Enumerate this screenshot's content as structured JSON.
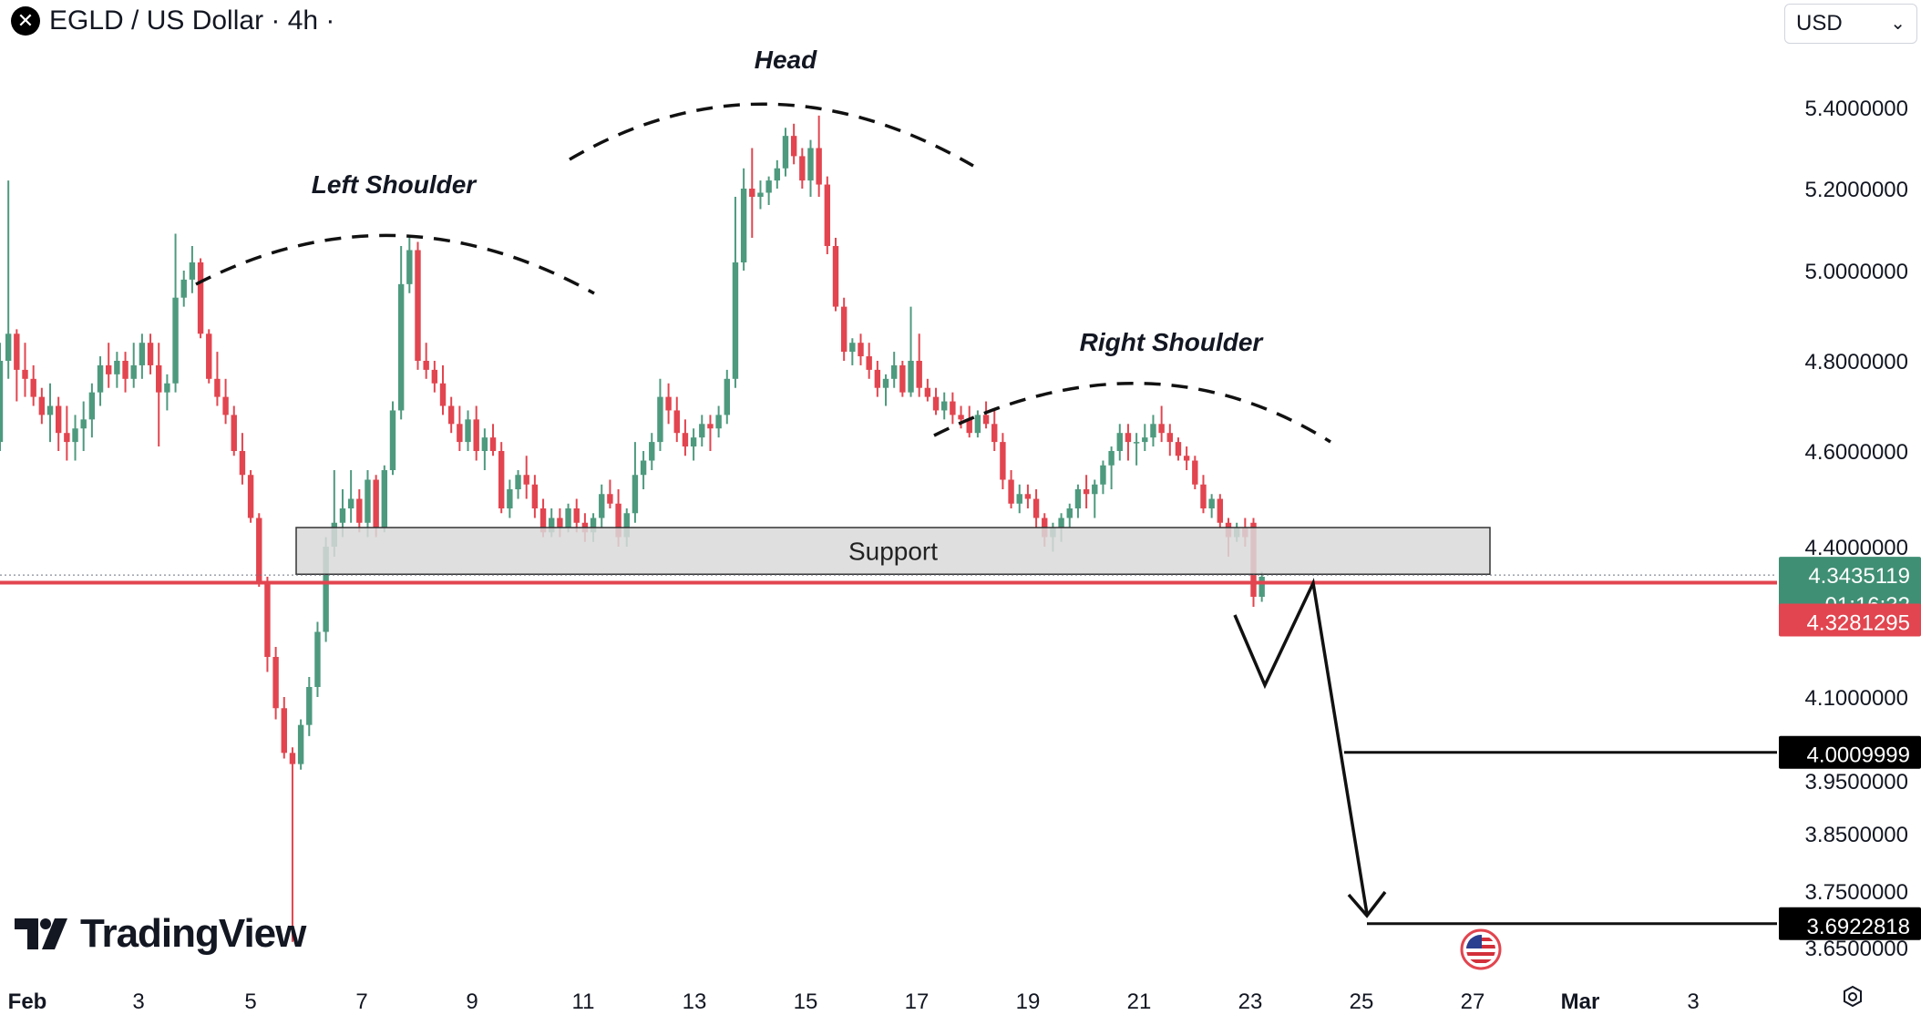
{
  "header": {
    "symbol": "EGLD / US Dollar · 4h ·",
    "currency": "USD"
  },
  "branding": {
    "logo_text": "TradingView"
  },
  "colors": {
    "up": "#26a69a",
    "up_body": "#4e9a7f",
    "down": "#e2454f",
    "support_fill": "#d9d9d9",
    "price_line": "#e2454f",
    "label_green": "#3f8f74"
  },
  "chart_data": {
    "type": "candlestick",
    "price_scale": [
      5.4,
      5.2,
      5.0,
      4.8,
      4.6,
      4.4,
      4.1,
      3.95,
      3.85,
      3.75,
      3.65
    ],
    "price_scale_labels": [
      "5.4000000",
      "5.2000000",
      "5.0000000",
      "4.8000000",
      "4.6000000",
      "4.4000000",
      "4.1000000",
      "3.9500000",
      "3.8500000",
      "3.7500000",
      "3.6500000"
    ],
    "time_labels": [
      "Feb",
      "3",
      "5",
      "7",
      "9",
      "11",
      "13",
      "15",
      "17",
      "19",
      "21",
      "23",
      "25",
      "27",
      "Mar",
      "3"
    ],
    "annotations": {
      "left_shoulder": "Left Shoulder",
      "head": "Head",
      "right_shoulder": "Right Shoulder",
      "support": "Support"
    },
    "support_zone": {
      "low": 4.345,
      "high": 4.44
    },
    "labels": {
      "last_price": "4.3435119",
      "countdown": "01:16:32",
      "red_level": "4.3281295",
      "target_1": "4.0009999",
      "target_2": "3.6922818"
    },
    "levels": {
      "last": 4.3435,
      "red": 4.3281,
      "target_1": 4.001,
      "target_2": 3.6923
    },
    "candles": [
      [
        4.62,
        4.84,
        4.6,
        4.8
      ],
      [
        4.8,
        5.22,
        4.76,
        4.86
      ],
      [
        4.86,
        4.87,
        4.71,
        4.78
      ],
      [
        4.78,
        4.84,
        4.72,
        4.76
      ],
      [
        4.76,
        4.79,
        4.7,
        4.72
      ],
      [
        4.72,
        4.74,
        4.66,
        4.68
      ],
      [
        4.68,
        4.75,
        4.62,
        4.7
      ],
      [
        4.7,
        4.72,
        4.6,
        4.64
      ],
      [
        4.64,
        4.7,
        4.58,
        4.62
      ],
      [
        4.62,
        4.68,
        4.58,
        4.65
      ],
      [
        4.65,
        4.71,
        4.6,
        4.67
      ],
      [
        4.67,
        4.75,
        4.63,
        4.73
      ],
      [
        4.73,
        4.81,
        4.7,
        4.79
      ],
      [
        4.79,
        4.84,
        4.74,
        4.77
      ],
      [
        4.77,
        4.82,
        4.74,
        4.8
      ],
      [
        4.8,
        4.82,
        4.73,
        4.76
      ],
      [
        4.76,
        4.84,
        4.74,
        4.79
      ],
      [
        4.79,
        4.86,
        4.76,
        4.84
      ],
      [
        4.84,
        4.86,
        4.77,
        4.79
      ],
      [
        4.79,
        4.84,
        4.61,
        4.73
      ],
      [
        4.73,
        4.77,
        4.69,
        4.75
      ],
      [
        4.75,
        5.09,
        4.73,
        4.94
      ],
      [
        4.94,
        5.0,
        4.92,
        4.98
      ],
      [
        4.98,
        5.06,
        4.95,
        5.02
      ],
      [
        5.02,
        5.03,
        4.85,
        4.86
      ],
      [
        4.86,
        4.87,
        4.75,
        4.76
      ],
      [
        4.76,
        4.82,
        4.7,
        4.72
      ],
      [
        4.72,
        4.76,
        4.66,
        4.68
      ],
      [
        4.68,
        4.7,
        4.59,
        4.6
      ],
      [
        4.6,
        4.64,
        4.53,
        4.55
      ],
      [
        4.55,
        4.56,
        4.45,
        4.46
      ],
      [
        4.46,
        4.47,
        4.32,
        4.33
      ],
      [
        4.33,
        4.34,
        4.15,
        4.18
      ],
      [
        4.18,
        4.2,
        4.06,
        4.08
      ],
      [
        4.08,
        4.1,
        3.99,
        4.0
      ],
      [
        4.0,
        4.01,
        3.66,
        3.98
      ],
      [
        3.98,
        4.06,
        3.97,
        4.05
      ],
      [
        4.05,
        4.14,
        4.03,
        4.12
      ],
      [
        4.12,
        4.25,
        4.1,
        4.23
      ],
      [
        4.23,
        4.42,
        4.21,
        4.4
      ],
      [
        4.4,
        4.56,
        4.38,
        4.45
      ],
      [
        4.45,
        4.52,
        4.42,
        4.48
      ],
      [
        4.48,
        4.56,
        4.45,
        4.5
      ],
      [
        4.5,
        4.52,
        4.43,
        4.45
      ],
      [
        4.45,
        4.56,
        4.42,
        4.54
      ],
      [
        4.54,
        4.55,
        4.42,
        4.44
      ],
      [
        4.44,
        4.57,
        4.43,
        4.56
      ],
      [
        4.56,
        4.71,
        4.55,
        4.69
      ],
      [
        4.69,
        5.06,
        4.67,
        4.97
      ],
      [
        4.97,
        5.08,
        4.95,
        5.05
      ],
      [
        5.05,
        5.07,
        4.78,
        4.8
      ],
      [
        4.8,
        4.84,
        4.76,
        4.78
      ],
      [
        4.78,
        4.8,
        4.73,
        4.75
      ],
      [
        4.75,
        4.79,
        4.68,
        4.7
      ],
      [
        4.7,
        4.72,
        4.64,
        4.66
      ],
      [
        4.66,
        4.7,
        4.6,
        4.62
      ],
      [
        4.62,
        4.69,
        4.6,
        4.67
      ],
      [
        4.67,
        4.7,
        4.58,
        4.6
      ],
      [
        4.6,
        4.65,
        4.56,
        4.63
      ],
      [
        4.63,
        4.66,
        4.59,
        4.6
      ],
      [
        4.6,
        4.62,
        4.47,
        4.48
      ],
      [
        4.48,
        4.54,
        4.46,
        4.52
      ],
      [
        4.52,
        4.56,
        4.5,
        4.55
      ],
      [
        4.55,
        4.59,
        4.5,
        4.53
      ],
      [
        4.53,
        4.55,
        4.46,
        4.48
      ],
      [
        4.48,
        4.5,
        4.42,
        4.43
      ],
      [
        4.43,
        4.48,
        4.42,
        4.46
      ],
      [
        4.46,
        4.48,
        4.42,
        4.44
      ],
      [
        4.44,
        4.49,
        4.43,
        4.48
      ],
      [
        4.48,
        4.5,
        4.43,
        4.45
      ],
      [
        4.45,
        4.47,
        4.41,
        4.43
      ],
      [
        4.43,
        4.47,
        4.41,
        4.46
      ],
      [
        4.46,
        4.53,
        4.44,
        4.51
      ],
      [
        4.51,
        4.54,
        4.48,
        4.49
      ],
      [
        4.49,
        4.52,
        4.4,
        4.42
      ],
      [
        4.42,
        4.48,
        4.4,
        4.47
      ],
      [
        4.47,
        4.62,
        4.45,
        4.55
      ],
      [
        4.55,
        4.6,
        4.52,
        4.58
      ],
      [
        4.58,
        4.64,
        4.56,
        4.62
      ],
      [
        4.62,
        4.76,
        4.6,
        4.72
      ],
      [
        4.72,
        4.75,
        4.66,
        4.69
      ],
      [
        4.69,
        4.72,
        4.62,
        4.64
      ],
      [
        4.64,
        4.67,
        4.59,
        4.61
      ],
      [
        4.61,
        4.65,
        4.58,
        4.63
      ],
      [
        4.63,
        4.68,
        4.61,
        4.66
      ],
      [
        4.66,
        4.68,
        4.6,
        4.65
      ],
      [
        4.65,
        4.7,
        4.63,
        4.68
      ],
      [
        4.68,
        4.78,
        4.66,
        4.76
      ],
      [
        4.76,
        5.18,
        4.74,
        5.02
      ],
      [
        5.02,
        5.25,
        5.0,
        5.2
      ],
      [
        5.2,
        5.3,
        5.08,
        5.18
      ],
      [
        5.18,
        5.22,
        5.15,
        5.19
      ],
      [
        5.19,
        5.23,
        5.16,
        5.22
      ],
      [
        5.22,
        5.27,
        5.2,
        5.25
      ],
      [
        5.25,
        5.35,
        5.23,
        5.33
      ],
      [
        5.33,
        5.36,
        5.26,
        5.28
      ],
      [
        5.28,
        5.3,
        5.2,
        5.22
      ],
      [
        5.22,
        5.32,
        5.18,
        5.3
      ],
      [
        5.3,
        5.38,
        5.18,
        5.21
      ],
      [
        5.21,
        5.23,
        5.04,
        5.06
      ],
      [
        5.06,
        5.08,
        4.91,
        4.92
      ],
      [
        4.92,
        4.94,
        4.8,
        4.82
      ],
      [
        4.82,
        4.85,
        4.79,
        4.84
      ],
      [
        4.84,
        4.86,
        4.79,
        4.81
      ],
      [
        4.81,
        4.84,
        4.76,
        4.78
      ],
      [
        4.78,
        4.8,
        4.72,
        4.74
      ],
      [
        4.74,
        4.77,
        4.7,
        4.76
      ],
      [
        4.76,
        4.82,
        4.74,
        4.79
      ],
      [
        4.79,
        4.8,
        4.72,
        4.73
      ],
      [
        4.73,
        4.92,
        4.72,
        4.8
      ],
      [
        4.8,
        4.86,
        4.72,
        4.74
      ],
      [
        4.74,
        4.76,
        4.71,
        4.72
      ],
      [
        4.72,
        4.74,
        4.68,
        4.69
      ],
      [
        4.69,
        4.73,
        4.67,
        4.71
      ],
      [
        4.71,
        4.73,
        4.66,
        4.68
      ],
      [
        4.68,
        4.7,
        4.65,
        4.67
      ],
      [
        4.67,
        4.7,
        4.63,
        4.64
      ],
      [
        4.64,
        4.69,
        4.63,
        4.68
      ],
      [
        4.68,
        4.71,
        4.65,
        4.66
      ],
      [
        4.66,
        4.69,
        4.6,
        4.62
      ],
      [
        4.62,
        4.64,
        4.52,
        4.54
      ],
      [
        4.54,
        4.56,
        4.48,
        4.49
      ],
      [
        4.49,
        4.53,
        4.47,
        4.51
      ],
      [
        4.51,
        4.53,
        4.48,
        4.5
      ],
      [
        4.5,
        4.52,
        4.44,
        4.46
      ],
      [
        4.46,
        4.47,
        4.4,
        4.42
      ],
      [
        4.42,
        4.45,
        4.39,
        4.44
      ],
      [
        4.44,
        4.47,
        4.41,
        4.46
      ],
      [
        4.46,
        4.49,
        4.44,
        4.48
      ],
      [
        4.48,
        4.53,
        4.46,
        4.52
      ],
      [
        4.52,
        4.55,
        4.48,
        4.51
      ],
      [
        4.51,
        4.54,
        4.46,
        4.53
      ],
      [
        4.53,
        4.58,
        4.51,
        4.57
      ],
      [
        4.57,
        4.61,
        4.52,
        4.6
      ],
      [
        4.6,
        4.66,
        4.58,
        4.64
      ],
      [
        4.64,
        4.66,
        4.58,
        4.62
      ],
      [
        4.62,
        4.64,
        4.57,
        4.62
      ],
      [
        4.62,
        4.66,
        4.6,
        4.63
      ],
      [
        4.63,
        4.68,
        4.61,
        4.66
      ],
      [
        4.66,
        4.7,
        4.62,
        4.64
      ],
      [
        4.64,
        4.66,
        4.59,
        4.62
      ],
      [
        4.62,
        4.63,
        4.58,
        4.59
      ],
      [
        4.59,
        4.61,
        4.56,
        4.58
      ],
      [
        4.58,
        4.59,
        4.52,
        4.53
      ],
      [
        4.53,
        4.55,
        4.47,
        4.48
      ],
      [
        4.48,
        4.51,
        4.46,
        4.5
      ],
      [
        4.5,
        4.51,
        4.44,
        4.45
      ],
      [
        4.45,
        4.46,
        4.38,
        4.42
      ],
      [
        4.42,
        4.45,
        4.41,
        4.44
      ],
      [
        4.44,
        4.46,
        4.4,
        4.42
      ],
      [
        4.45,
        4.46,
        4.28,
        4.3
      ],
      [
        4.3,
        4.35,
        4.29,
        4.34
      ]
    ]
  }
}
